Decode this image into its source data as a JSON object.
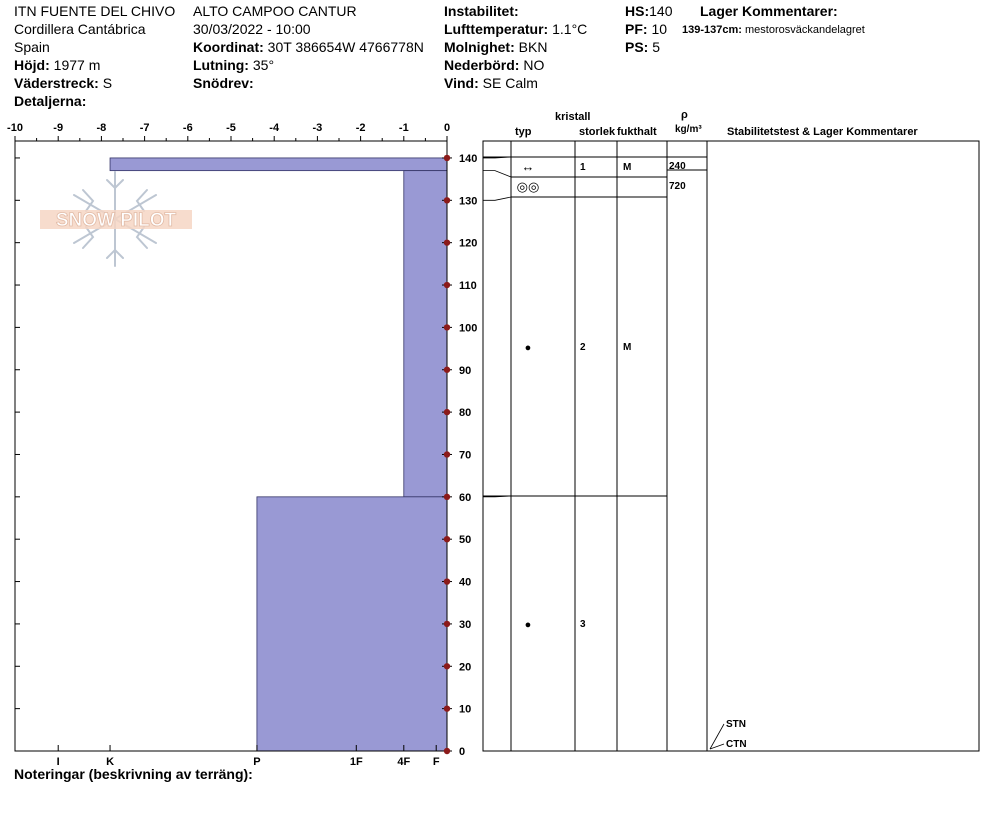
{
  "header": {
    "site": "ITN FUENTE DEL CHIVO",
    "range": "Cordillera Cantábrica",
    "country": "Spain",
    "elevation_label": "Höjd:",
    "elevation_value": "1977 m",
    "aspect_label": "Väderstreck:",
    "aspect_value": "S",
    "details_label": "Detaljerna:",
    "location": "ALTO CAMPOO CANTUR",
    "datetime": "30/03/2022 - 10:00",
    "coord_label": "Koordinat:",
    "coord_value": "30T 386654W 4766778N",
    "slope_label": "Lutning:",
    "slope_value": "35°",
    "drift_label": "Snödrev:",
    "drift_value": "",
    "stability_label": "Instabilitet:",
    "stability_value": "",
    "airtemp_label": "Lufttemperatur:",
    "airtemp_value": "1.1°C",
    "sky_label": "Molnighet:",
    "sky_value": "BKN",
    "precip_label": "Nederbörd:",
    "precip_value": "NO",
    "wind_label": "Vind:",
    "wind_value": "SE Calm",
    "hs_label": "HS:",
    "hs_value": "140",
    "pf_label": "PF:",
    "pf_value": "10",
    "ps_label": "PS:",
    "ps_value": "5",
    "layer_comments_title": "Lager Kommentarer:",
    "layer_comment_range": "139-137cm:",
    "layer_comment_text": "mestorosväckandelagret"
  },
  "footer": {
    "notes_label": "Noteringar (beskrivning av terräng):"
  },
  "logo": {
    "text": "SNOW PILOT"
  },
  "table": {
    "col_type": "typ",
    "col_crystal_1": "kristall",
    "col_crystal_2": "storlek",
    "col_moisture": "fukthalt",
    "col_density_sym": "ρ",
    "col_density_unit": "kg/m³",
    "col_comments": "Stabilitetstest & Lager Kommentarer",
    "layers": [
      {
        "top": 140,
        "bottom": 137,
        "type_symbol": "↔",
        "size": "1",
        "moisture": "M",
        "density": "240"
      },
      {
        "top": 137,
        "bottom": 130,
        "type_symbol": "◎◎",
        "size": "",
        "moisture": "",
        "density": "720"
      },
      {
        "top": 130,
        "bottom": 60,
        "type_symbol": "●",
        "size": "2",
        "moisture": "M",
        "density": ""
      },
      {
        "top": 60,
        "bottom": 0,
        "type_symbol": "●",
        "size": "3",
        "moisture": "",
        "density": ""
      }
    ],
    "tests": [
      {
        "label": "STN",
        "height": 0
      },
      {
        "label": "CTN",
        "height": 0
      }
    ]
  },
  "chart_data": {
    "type": "area",
    "x_temperature_ticks": [
      "-10",
      "-9",
      "-8",
      "-7",
      "-6",
      "-5",
      "-4",
      "-3",
      "-2",
      "-1",
      "0"
    ],
    "xlim_temperature": [
      -10,
      0
    ],
    "y_height_ticks": [
      "0",
      "10",
      "20",
      "30",
      "40",
      "50",
      "60",
      "70",
      "80",
      "90",
      "100",
      "110",
      "120",
      "130",
      "140"
    ],
    "ylim": [
      0,
      144
    ],
    "hardness_labels": [
      {
        "label": "I",
        "value": -9
      },
      {
        "label": "K",
        "value": -7.8
      },
      {
        "label": "P",
        "value": -4.4
      },
      {
        "label": "1F",
        "value": -2.1
      },
      {
        "label": "4F",
        "value": -1
      },
      {
        "label": "F",
        "value": -0.25
      }
    ],
    "hardness_profile": [
      {
        "top": 140,
        "bottom": 137,
        "hardness": "K"
      },
      {
        "top": 137,
        "bottom": 60,
        "hardness": "4F"
      },
      {
        "top": 60,
        "bottom": 0,
        "hardness": "P"
      }
    ],
    "temperature_points": [
      {
        "height": 140,
        "temp": 0
      },
      {
        "height": 130,
        "temp": 0
      },
      {
        "height": 120,
        "temp": 0
      },
      {
        "height": 110,
        "temp": 0
      },
      {
        "height": 100,
        "temp": 0
      },
      {
        "height": 90,
        "temp": 0
      },
      {
        "height": 80,
        "temp": 0
      },
      {
        "height": 70,
        "temp": 0
      },
      {
        "height": 60,
        "temp": 0
      },
      {
        "height": 50,
        "temp": 0
      },
      {
        "height": 40,
        "temp": 0
      },
      {
        "height": 30,
        "temp": 0
      },
      {
        "height": 20,
        "temp": 0
      },
      {
        "height": 10,
        "temp": 0
      },
      {
        "height": 0,
        "temp": 0
      }
    ],
    "colors": {
      "hardness_fill": "#9999d4",
      "temp_marker": "#8b1a1a"
    }
  }
}
